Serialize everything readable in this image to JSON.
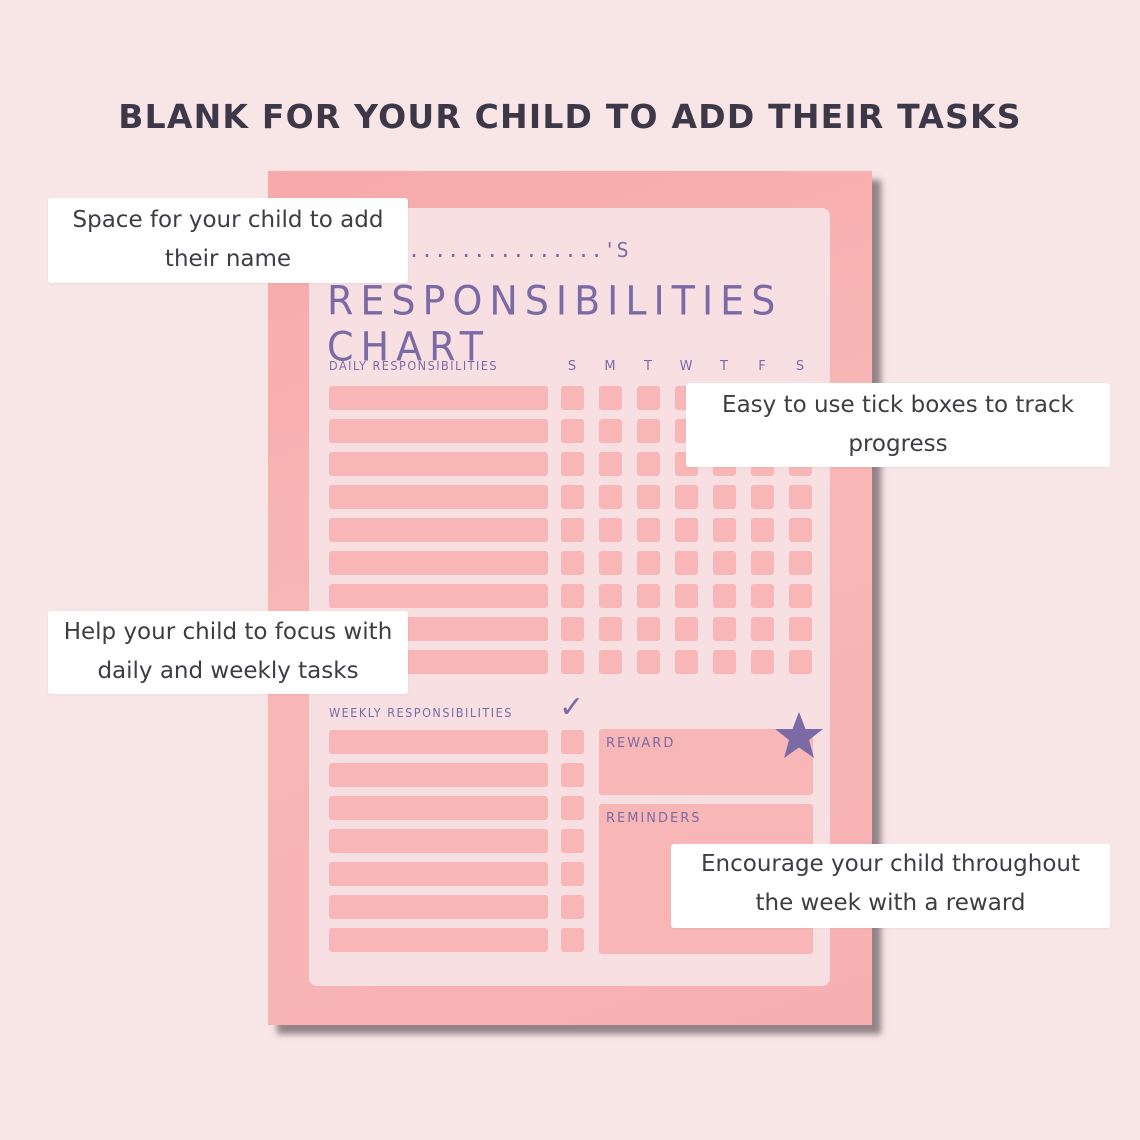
{
  "headline": "BLANK FOR YOUR CHILD TO ADD THEIR TASKS",
  "chart": {
    "name_line": "...............'S",
    "title": "RESPONSIBILITIES CHART",
    "daily_label": "DAILY RESPONSIBILITIES",
    "weekly_label": "WEEKLY RESPONSIBILITIES",
    "days": [
      "S",
      "M",
      "T",
      "W",
      "T",
      "F",
      "S"
    ],
    "reward_label": "REWARD",
    "reminders_label": "REMINDERS",
    "tick": "✓"
  },
  "callouts": {
    "name": "Space for your child to add their name",
    "tick": "Easy to use tick boxes to track progress",
    "focus": "Help your child to focus with daily and weekly tasks",
    "reward": "Encourage your child throughout the week with a reward"
  },
  "colors": {
    "background": "#f8e6e7",
    "paper": "#f9b6b7",
    "sheet": "#f8e0e2",
    "accent_purple": "#7b6aa6",
    "text_dark": "#3d3848"
  },
  "icons": [
    "star-icon",
    "check-icon"
  ]
}
